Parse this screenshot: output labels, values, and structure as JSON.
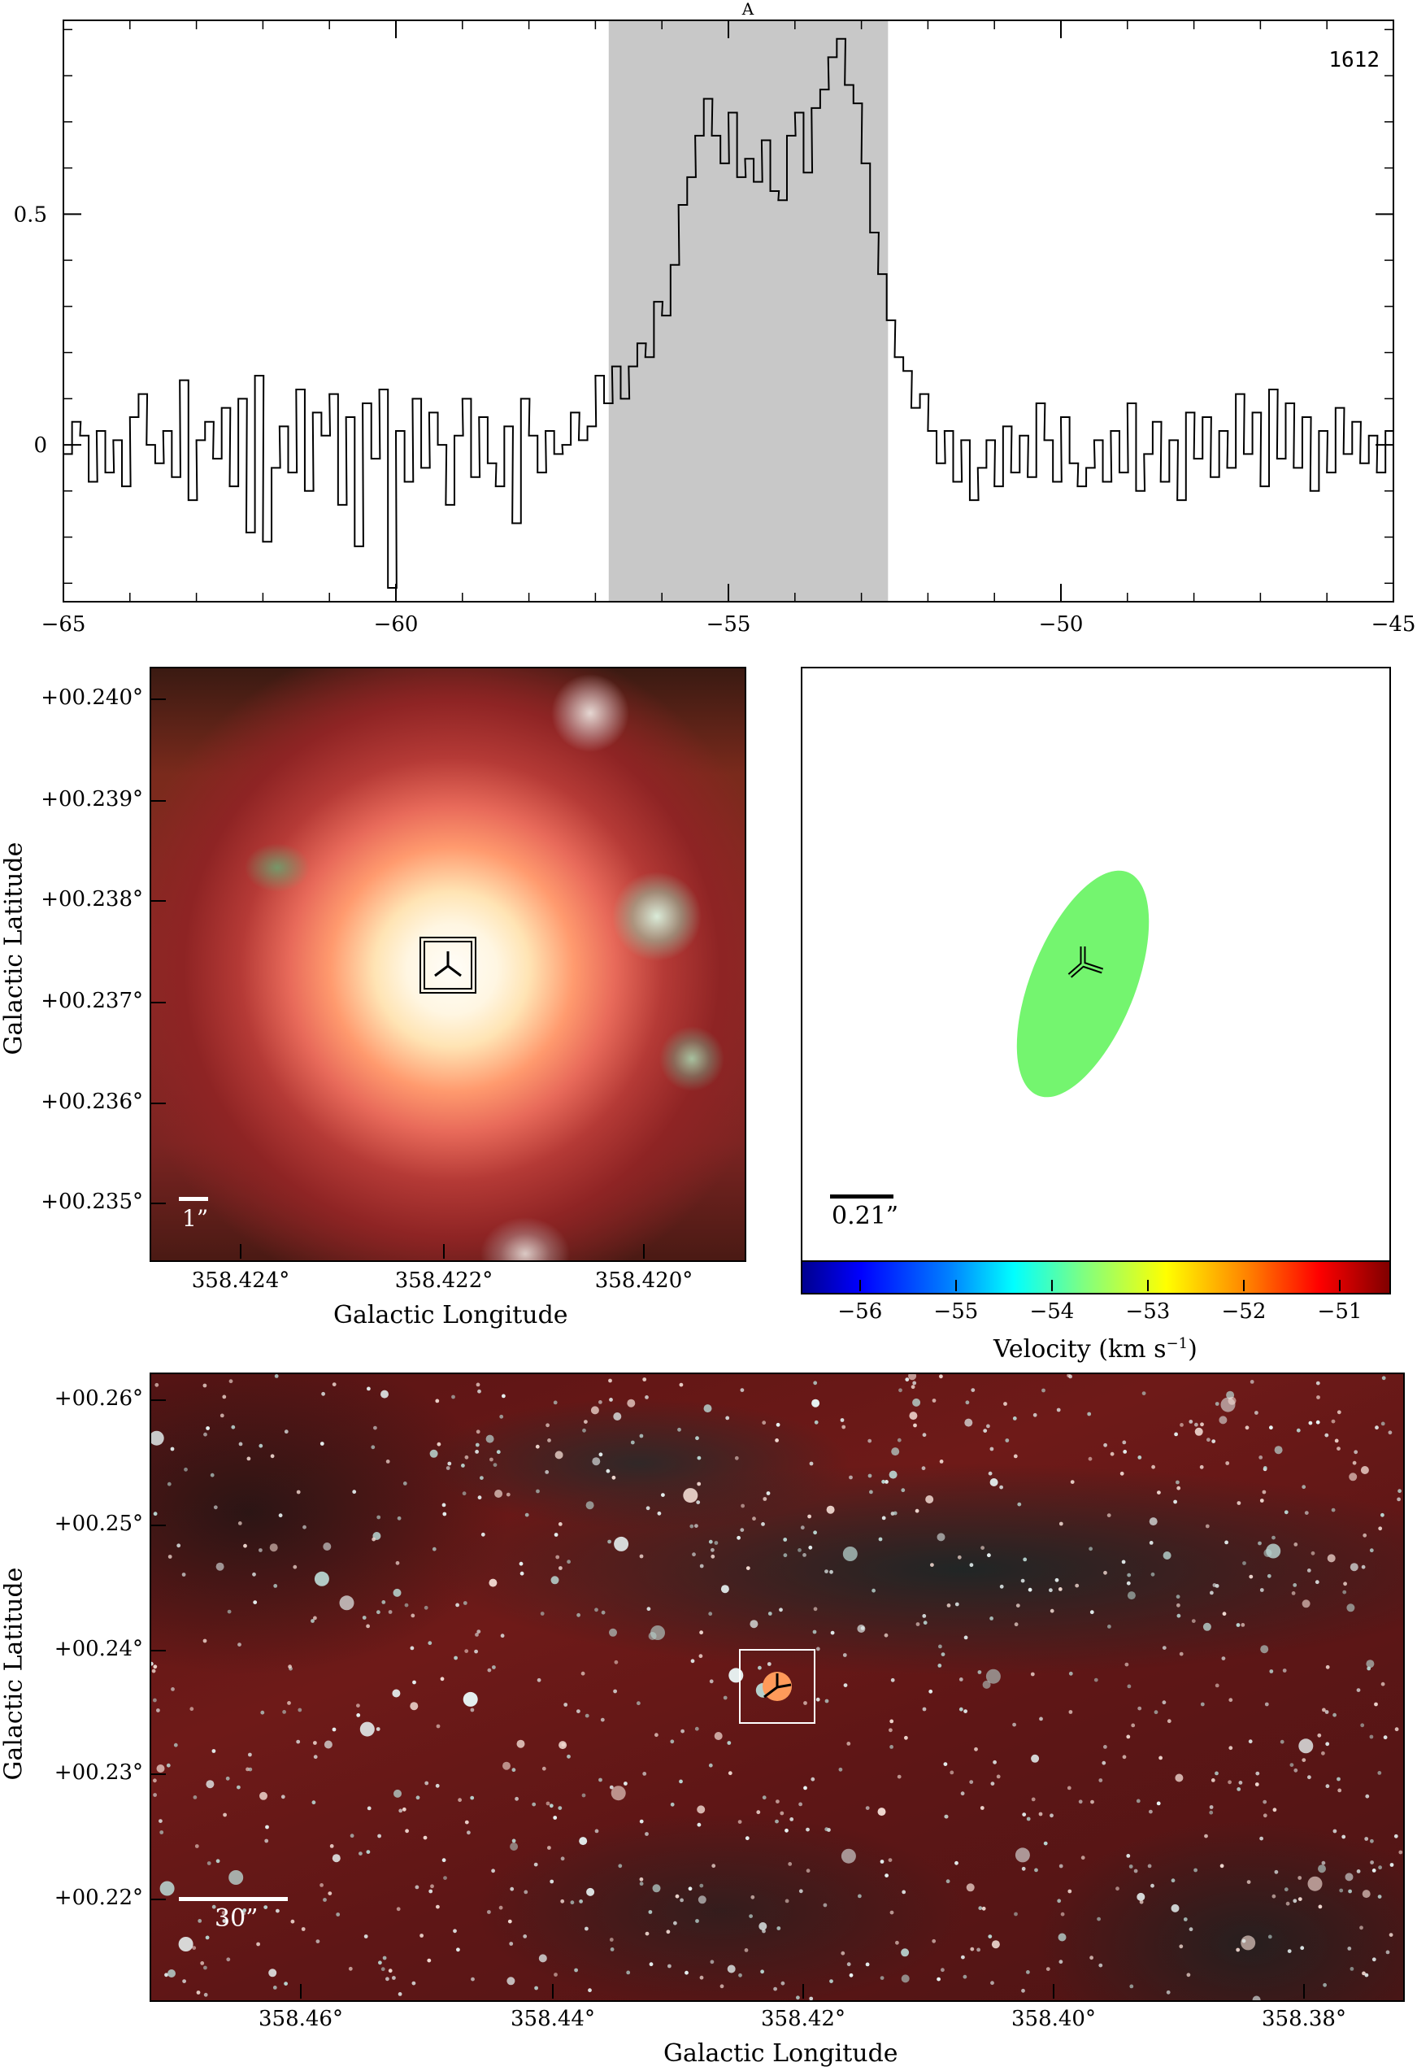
{
  "chart_data": [
    {
      "type": "line",
      "xlabel": "",
      "ylabel": "",
      "xlim": [
        -65,
        -45
      ],
      "ylim": [
        -0.34,
        0.92
      ],
      "x_ticks": [
        -65,
        -60,
        -55,
        -50,
        -45
      ],
      "x_tick_labels": [
        "−65",
        "−60",
        "−55",
        "−50",
        "−45"
      ],
      "y_ticks": [
        0,
        0.5
      ],
      "y_tick_labels": [
        "0",
        "0.5"
      ],
      "annotations": {
        "top_label": "A",
        "corner_label": "1612"
      },
      "shaded_region": [
        -56.8,
        -52.6
      ],
      "series": [
        {
          "x": [
            -65.0,
            -64.87,
            -64.75,
            -64.62,
            -64.5,
            -64.37,
            -64.25,
            -64.12,
            -64.0,
            -63.87,
            -63.75,
            -63.62,
            -63.5,
            -63.37,
            -63.25,
            -63.12,
            -63.0,
            -62.87,
            -62.75,
            -62.62,
            -62.5,
            -62.37,
            -62.25,
            -62.12,
            -62.0,
            -61.87,
            -61.75,
            -61.62,
            -61.5,
            -61.37,
            -61.25,
            -61.12,
            -61.0,
            -60.87,
            -60.75,
            -60.62,
            -60.5,
            -60.37,
            -60.25,
            -60.12,
            -60.0,
            -59.87,
            -59.75,
            -59.62,
            -59.5,
            -59.37,
            -59.25,
            -59.12,
            -59.0,
            -58.87,
            -58.75,
            -58.62,
            -58.5,
            -58.37,
            -58.25,
            -58.12,
            -58.0,
            -57.87,
            -57.75,
            -57.62,
            -57.5,
            -57.37,
            -57.25,
            -57.12,
            -57.0,
            -56.87,
            -56.75,
            -56.62,
            -56.5,
            -56.37,
            -56.25,
            -56.12,
            -56.0,
            -55.87,
            -55.75,
            -55.62,
            -55.5,
            -55.37,
            -55.25,
            -55.12,
            -55.0,
            -54.87,
            -54.75,
            -54.62,
            -54.5,
            -54.37,
            -54.25,
            -54.12,
            -54.0,
            -53.87,
            -53.75,
            -53.62,
            -53.5,
            -53.37,
            -53.25,
            -53.12,
            -53.0,
            -52.87,
            -52.75,
            -52.62,
            -52.5,
            -52.37,
            -52.25,
            -52.12,
            -52.0,
            -51.87,
            -51.75,
            -51.62,
            -51.5,
            -51.37,
            -51.25,
            -51.12,
            -51.0,
            -50.87,
            -50.75,
            -50.62,
            -50.5,
            -50.37,
            -50.25,
            -50.12,
            -50.0,
            -49.87,
            -49.75,
            -49.62,
            -49.5,
            -49.37,
            -49.25,
            -49.12,
            -49.0,
            -48.87,
            -48.75,
            -48.62,
            -48.5,
            -48.37,
            -48.25,
            -48.12,
            -48.0,
            -47.87,
            -47.75,
            -47.62,
            -47.5,
            -47.37,
            -47.25,
            -47.12,
            -47.0,
            -46.87,
            -46.75,
            -46.62,
            -46.5,
            -46.37,
            -46.25,
            -46.12,
            -46.0,
            -45.87,
            -45.75,
            -45.62,
            -45.5,
            -45.37,
            -45.25,
            -45.12
          ],
          "y": [
            -0.02,
            0.05,
            0.02,
            -0.08,
            0.03,
            -0.06,
            0.01,
            -0.09,
            0.06,
            0.11,
            0.0,
            -0.04,
            0.03,
            -0.07,
            0.14,
            -0.12,
            0.01,
            0.05,
            -0.03,
            0.08,
            -0.09,
            0.1,
            -0.19,
            0.15,
            -0.21,
            -0.05,
            0.04,
            -0.06,
            0.12,
            -0.1,
            0.07,
            0.02,
            0.11,
            -0.13,
            0.06,
            -0.22,
            0.09,
            -0.03,
            0.12,
            -0.31,
            0.03,
            -0.08,
            0.1,
            -0.05,
            0.07,
            0.0,
            -0.13,
            0.02,
            0.1,
            -0.07,
            0.06,
            -0.04,
            -0.09,
            0.04,
            -0.17,
            0.1,
            0.02,
            -0.06,
            0.03,
            -0.02,
            0.0,
            0.07,
            0.01,
            0.04,
            0.15,
            0.09,
            0.17,
            0.1,
            0.17,
            0.22,
            0.19,
            0.31,
            0.28,
            0.39,
            0.52,
            0.58,
            0.67,
            0.75,
            0.67,
            0.61,
            0.72,
            0.58,
            0.62,
            0.57,
            0.66,
            0.55,
            0.53,
            0.67,
            0.72,
            0.59,
            0.73,
            0.77,
            0.84,
            0.88,
            0.78,
            0.74,
            0.61,
            0.46,
            0.37,
            0.27,
            0.19,
            0.16,
            0.08,
            0.11,
            0.03,
            -0.04,
            0.03,
            -0.08,
            0.01,
            -0.12,
            -0.05,
            0.01,
            -0.09,
            0.04,
            -0.06,
            0.02,
            -0.07,
            0.09,
            0.01,
            -0.08,
            0.06,
            -0.04,
            -0.09,
            -0.05,
            0.01,
            -0.08,
            0.03,
            -0.06,
            0.09,
            -0.1,
            -0.02,
            0.05,
            -0.08,
            0.01,
            -0.12,
            0.07,
            -0.03,
            0.06,
            -0.07,
            0.03,
            -0.05,
            0.11,
            -0.02,
            0.07,
            -0.09,
            0.12,
            -0.03,
            0.09,
            -0.05,
            0.06,
            -0.1,
            0.03,
            -0.06,
            0.08,
            -0.02,
            0.05,
            -0.04,
            0.02,
            -0.06,
            0.03
          ]
        }
      ]
    },
    {
      "type": "image",
      "xlabel": "Galactic Longitude",
      "ylabel": "Galactic Latitude",
      "x_tick_labels": [
        "358.424°",
        "358.422°",
        "358.420°"
      ],
      "y_tick_labels": [
        "+00.240°",
        "+00.239°",
        "+00.238°",
        "+00.237°",
        "+00.236°",
        "+00.235°"
      ],
      "scalebar_label": "1”"
    },
    {
      "type": "scatter",
      "xlabel": "Velocity (km s⁻¹)",
      "colorbar_ticks": [
        -56,
        -55,
        -54,
        -53,
        -52,
        -51
      ],
      "colorbar_tick_labels": [
        "−56",
        "−55",
        "−54",
        "−53",
        "−52",
        "−51"
      ],
      "colorbar_range": [
        -56.6,
        -50.5
      ],
      "ellipse_velocity": -53.8,
      "ellipse_color": "#74f56f",
      "scalebar_label": "0.21”"
    },
    {
      "type": "image",
      "xlabel": "Galactic Longitude",
      "ylabel": "Galactic Latitude",
      "x_tick_labels": [
        "358.46°",
        "358.44°",
        "358.42°",
        "358.40°",
        "358.38°"
      ],
      "y_tick_labels": [
        "+00.26°",
        "+00.25°",
        "+00.24°",
        "+00.23°",
        "+00.22°"
      ],
      "scalebar_label": "30”"
    }
  ],
  "colors": {
    "shade": "#c8c8c8",
    "line": "#000000",
    "background_red": "#6b1414",
    "ellipse": "#74f56f"
  }
}
